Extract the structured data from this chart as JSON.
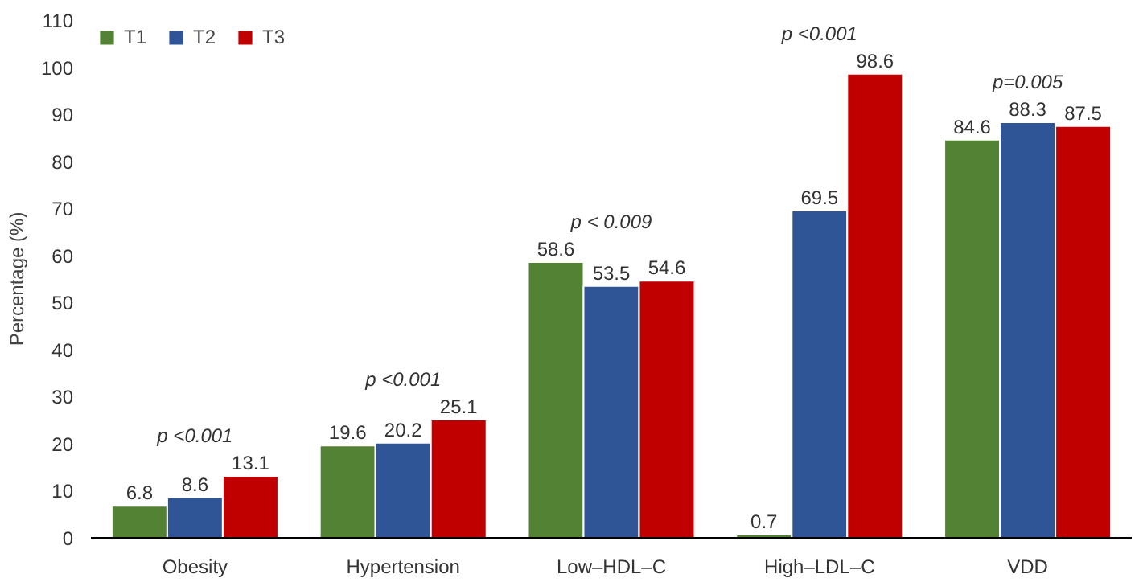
{
  "chart_data": {
    "type": "bar",
    "ylabel": "Percentage (%)",
    "categories": [
      "Obesity",
      "Hypertension",
      "Low–HDL–C",
      "High–LDL–C",
      "VDD"
    ],
    "series": [
      {
        "name": "T1",
        "color": "#548235",
        "values": [
          6.8,
          19.6,
          58.6,
          0.7,
          84.6
        ]
      },
      {
        "name": "T2",
        "color": "#2f5597",
        "values": [
          8.6,
          20.2,
          53.5,
          69.5,
          88.3
        ]
      },
      {
        "name": "T3",
        "color": "#c00000",
        "values": [
          13.1,
          25.1,
          54.6,
          98.6,
          87.5
        ]
      }
    ],
    "ylim": [
      0,
      110
    ],
    "yticks": [
      0,
      10,
      20,
      30,
      40,
      50,
      60,
      70,
      80,
      90,
      100,
      110
    ],
    "grid": false,
    "legend": "top left",
    "data_labels": true,
    "annotations": [
      "p <0.001",
      "p <0.001",
      "p < 0.009",
      "p <0.001",
      "p=0.005"
    ]
  }
}
